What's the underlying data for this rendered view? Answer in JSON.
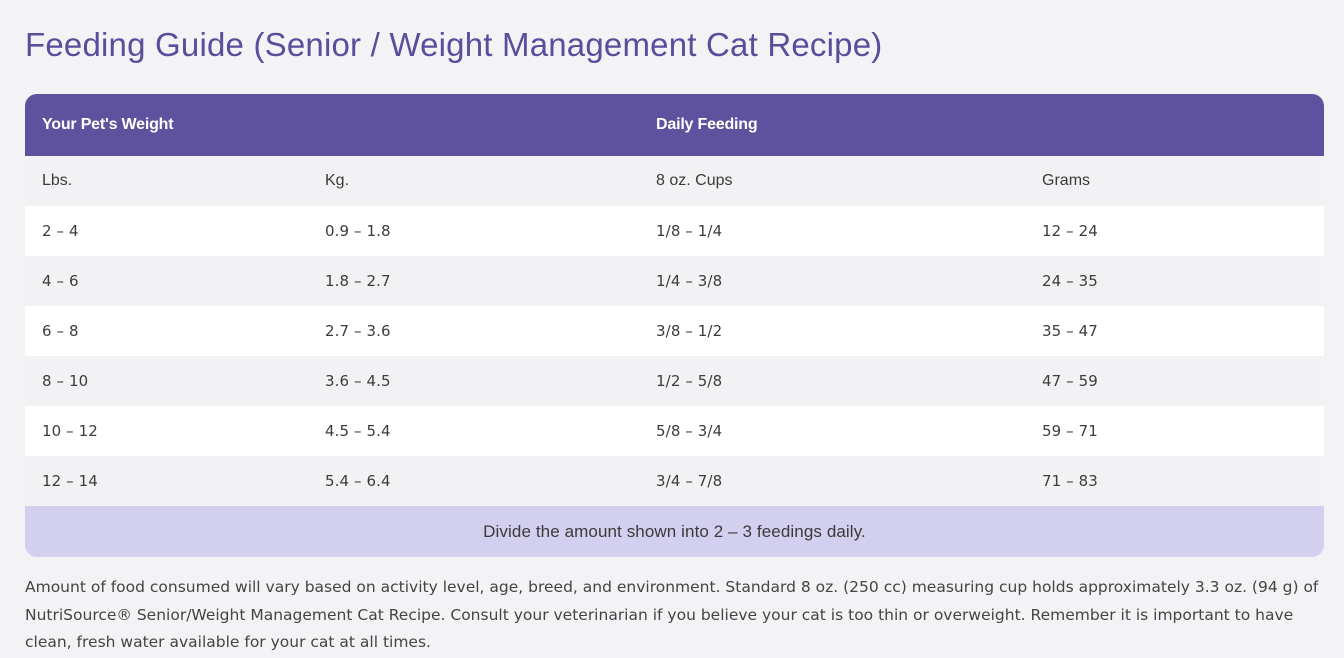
{
  "title": "Feeding Guide (Senior / Weight Management Cat Recipe)",
  "table": {
    "group_headers": {
      "weight": "Your Pet's Weight",
      "feeding": "Daily Feeding"
    },
    "unit_headers": [
      "Lbs.",
      "Kg.",
      "8 oz. Cups",
      "Grams"
    ],
    "rows": [
      [
        "2 – 4",
        "0.9 – 1.8",
        "1/8 – 1/4",
        "12 – 24"
      ],
      [
        "4 – 6",
        "1.8 – 2.7",
        "1/4 – 3/8",
        "24 – 35"
      ],
      [
        "6 – 8",
        "2.7 – 3.6",
        "3/8 – 1/2",
        "35 – 47"
      ],
      [
        "8 – 10",
        "3.6 – 4.5",
        "1/2 – 5/8",
        "47 – 59"
      ],
      [
        "10 – 12",
        "4.5 – 5.4",
        "5/8 – 3/4",
        "59 – 71"
      ],
      [
        "12 – 14",
        "5.4 – 6.4",
        "3/4 – 7/8",
        "71 – 83"
      ]
    ],
    "note": "Divide the amount shown into 2 – 3 feedings daily."
  },
  "footnote": "Amount of food consumed will vary based on activity level, age, breed, and environment. Standard 8 oz. (250 cc) measuring cup holds approximately 3.3 oz. (94 g) of NutriSource® Senior/Weight Management Cat Recipe. Consult your veterinarian if you believe your cat is too thin or overweight. Remember it is important to have clean, fresh water available for your cat at all times.",
  "colors": {
    "accent": "#5e519d",
    "note_background": "#d3cfee",
    "page_background": "#f3f3f6"
  }
}
